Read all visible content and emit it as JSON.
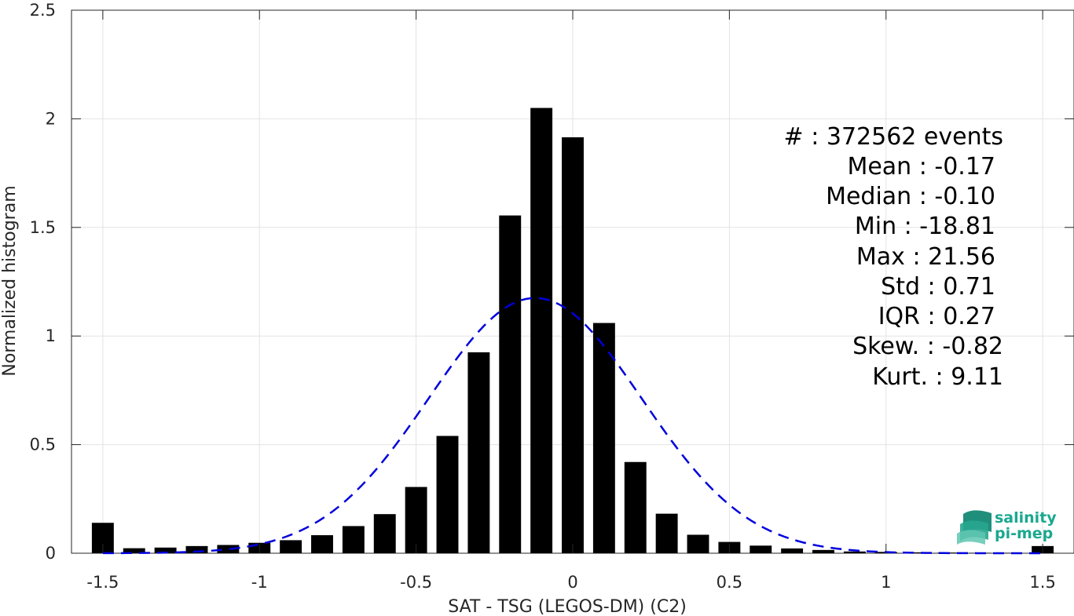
{
  "chart_data": {
    "type": "bar",
    "xlabel": "SAT - TSG (LEGOS-DM) (C2)",
    "ylabel": "Normalized histogram",
    "xlim": [
      -1.6,
      1.6
    ],
    "ylim": [
      0,
      2.5
    ],
    "grid": true,
    "x_ticks": [
      "-1.5",
      "-1",
      "-0.5",
      "0",
      "0.5",
      "1",
      "1.5"
    ],
    "x_tick_values": [
      -1.5,
      -1,
      -0.5,
      0,
      0.5,
      1,
      1.5
    ],
    "y_ticks": [
      "0",
      "0.5",
      "1",
      "1.5",
      "2",
      "2.5"
    ],
    "y_tick_values": [
      0,
      0.5,
      1,
      1.5,
      2,
      2.5
    ],
    "bar_width": 0.07,
    "bar_color": "#000000",
    "bars": {
      "x": [
        -1.5,
        -1.4,
        -1.3,
        -1.2,
        -1.1,
        -1.0,
        -0.9,
        -0.8,
        -0.7,
        -0.6,
        -0.5,
        -0.4,
        -0.3,
        -0.2,
        -0.1,
        0.0,
        0.1,
        0.2,
        0.3,
        0.4,
        0.5,
        0.6,
        0.7,
        0.8,
        0.9,
        1.0,
        1.1,
        1.2,
        1.3,
        1.4,
        1.5
      ],
      "values": [
        0.14,
        0.023,
        0.026,
        0.033,
        0.038,
        0.048,
        0.06,
        0.083,
        0.125,
        0.18,
        0.305,
        0.54,
        0.925,
        1.555,
        2.05,
        1.915,
        1.06,
        0.42,
        0.182,
        0.085,
        0.052,
        0.035,
        0.022,
        0.015,
        0.008,
        0.006,
        0.004,
        0.003,
        0.002,
        0.002,
        0.033
      ]
    },
    "fit_curve": {
      "style": "dashed",
      "color": "#0000dd",
      "mean": -0.12,
      "std": 0.34,
      "peak": 1.175,
      "x_range": [
        -1.5,
        1.5
      ]
    },
    "annotations": [
      "#  : 372562 events",
      "Mean : -0.17",
      "Median : -0.10",
      "Min : -18.81",
      "Max : 21.56",
      "Std : 0.71",
      "IQR : 0.27",
      "Skew. : -0.82",
      "Kurt. : 9.11"
    ]
  },
  "logo": {
    "line1": "salinity",
    "line2": "pi-mep",
    "color": "#1aa88f"
  }
}
